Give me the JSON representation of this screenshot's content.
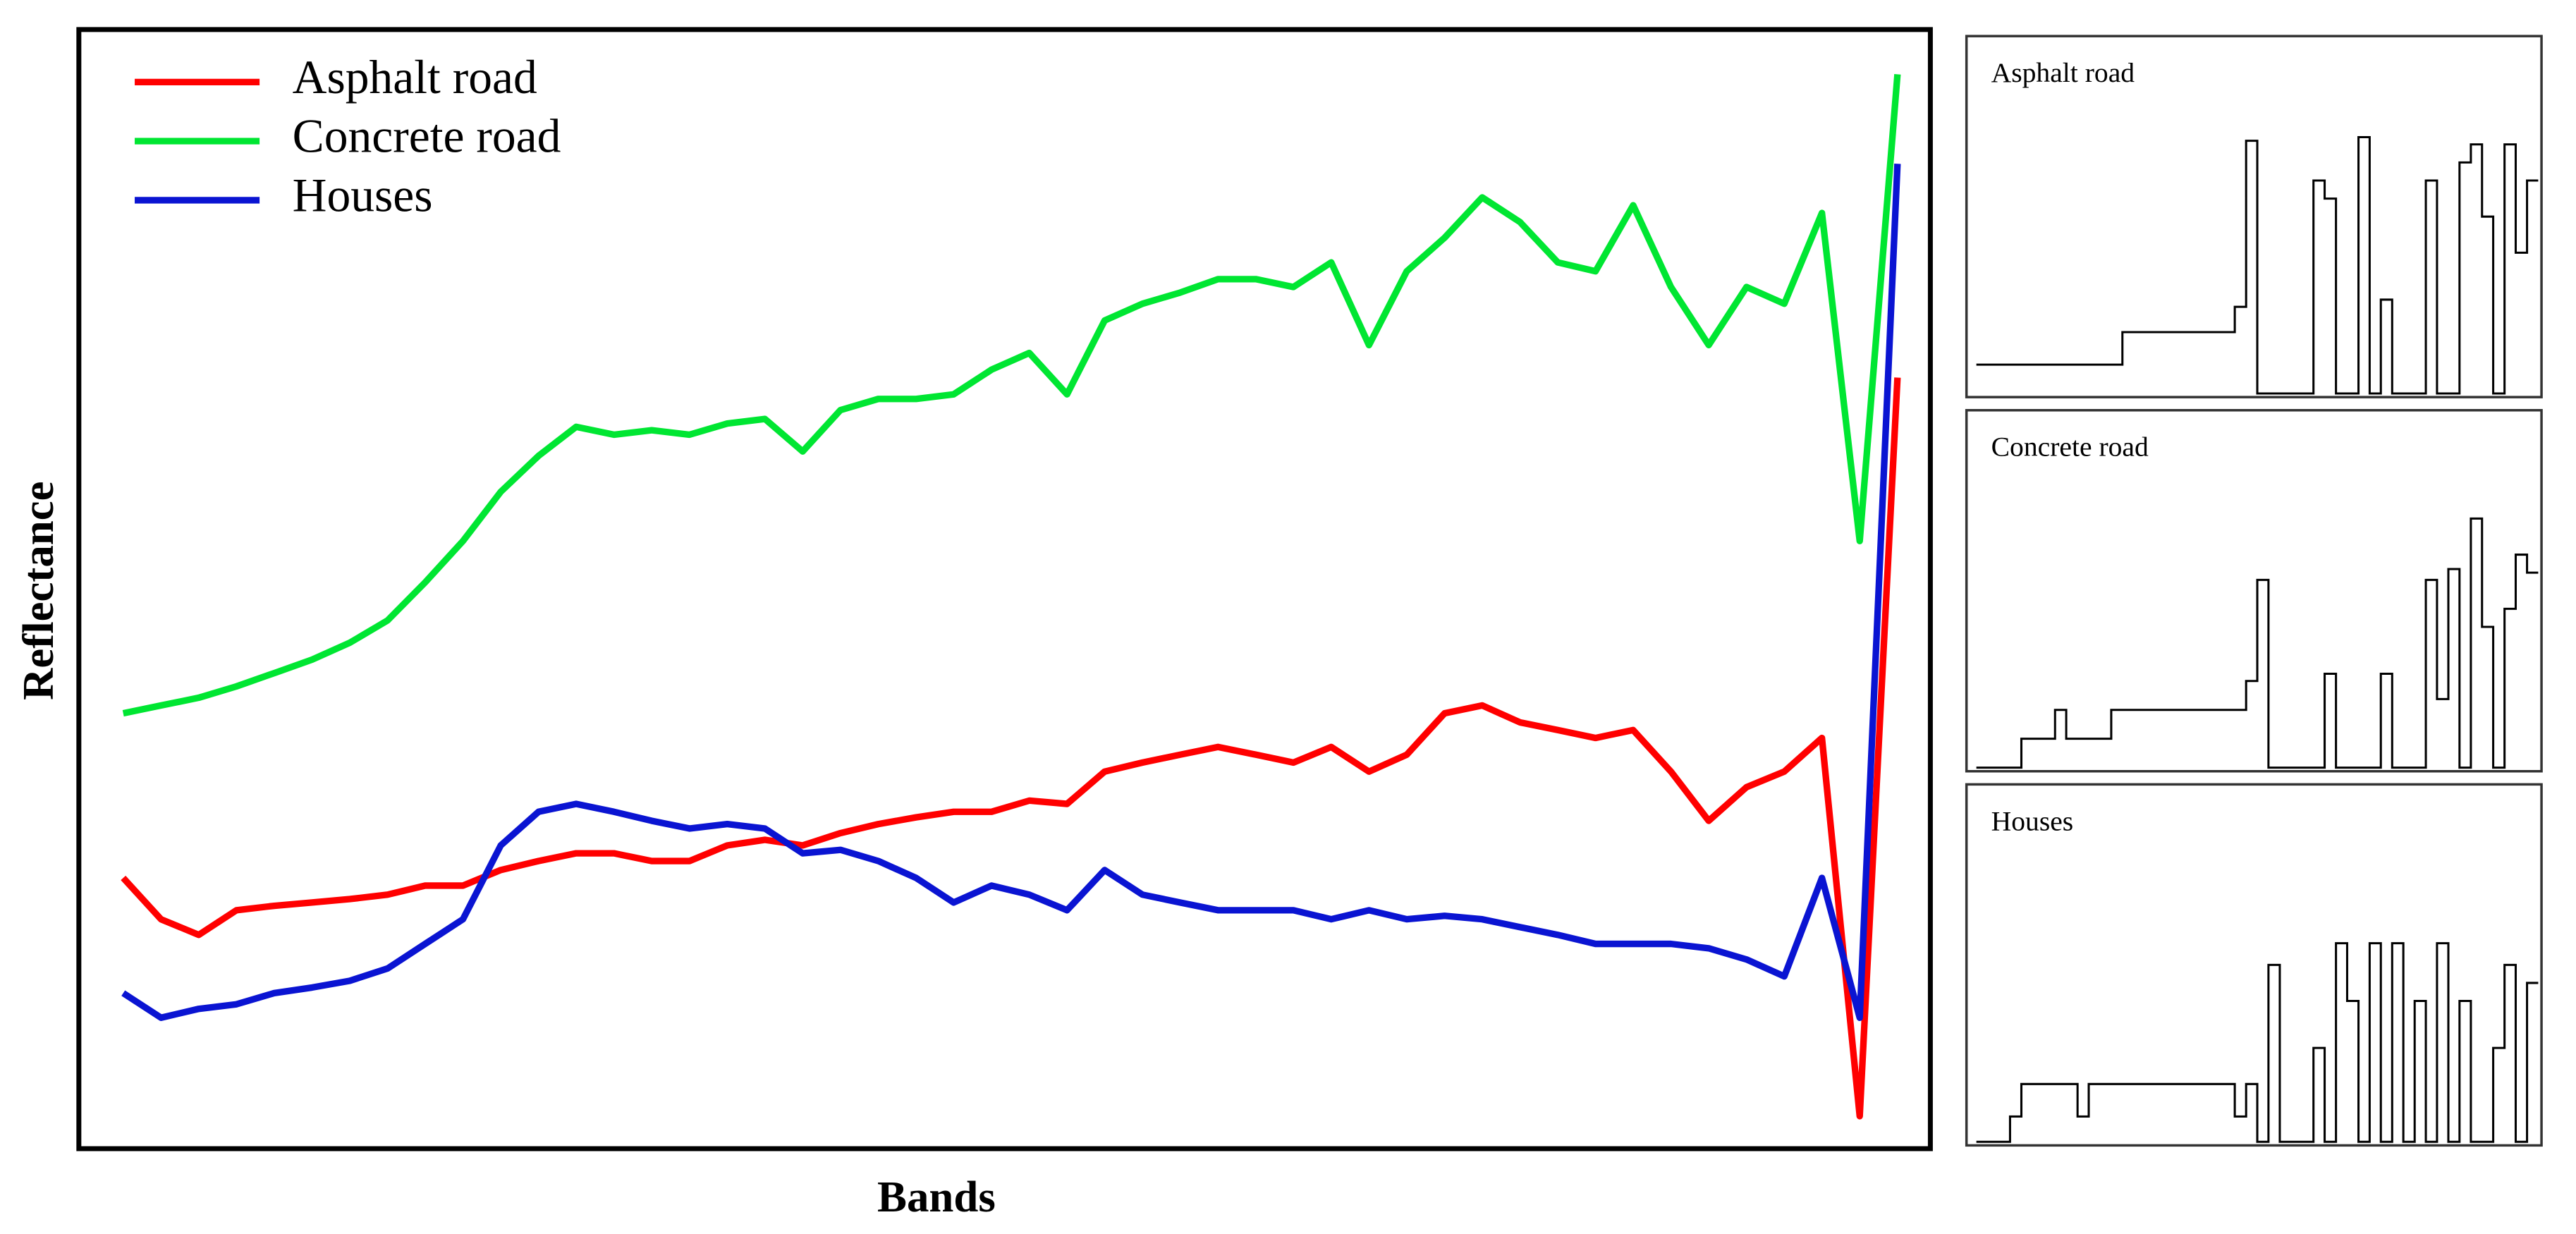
{
  "chart_data": [
    {
      "type": "line",
      "xlabel": "Bands",
      "ylabel": "Reflectance",
      "ylim": [
        0,
        100
      ],
      "legend": "upper left",
      "series": [
        {
          "name": "Asphalt road",
          "color": "#ff0000",
          "values": [
            24.2,
            20.5,
            19.1,
            21.3,
            21.7,
            22.0,
            22.3,
            22.7,
            23.5,
            23.5,
            24.9,
            25.7,
            26.4,
            26.4,
            25.7,
            25.7,
            27.1,
            27.6,
            27.1,
            28.2,
            29.0,
            29.6,
            30.1,
            30.1,
            31.1,
            30.8,
            33.7,
            34.5,
            35.2,
            35.9,
            35.2,
            34.5,
            35.9,
            33.7,
            35.2,
            38.9,
            39.6,
            38.1,
            37.4,
            36.7,
            37.4,
            33.7,
            29.3,
            32.3,
            33.7,
            36.7,
            2.9,
            68.9
          ]
        },
        {
          "name": "Concrete road",
          "color": "#00e632",
          "values": [
            38.9,
            39.6,
            40.3,
            41.3,
            42.5,
            43.7,
            45.2,
            47.2,
            50.6,
            54.3,
            58.7,
            61.9,
            64.5,
            63.8,
            64.2,
            63.8,
            64.8,
            65.2,
            62.3,
            66.0,
            67.0,
            67.0,
            67.4,
            69.6,
            71.1,
            67.4,
            74.0,
            75.5,
            76.5,
            77.7,
            77.7,
            77.0,
            79.2,
            71.8,
            78.4,
            81.4,
            85.0,
            82.8,
            79.2,
            78.4,
            84.3,
            77.0,
            71.8,
            77.0,
            75.5,
            83.6,
            54.3,
            96.0
          ]
        },
        {
          "name": "Houses",
          "color": "#0a14d2",
          "values": [
            13.9,
            11.7,
            12.5,
            12.9,
            13.9,
            14.4,
            15.0,
            16.1,
            18.3,
            20.5,
            27.1,
            30.1,
            30.8,
            30.1,
            29.3,
            28.6,
            29.0,
            28.6,
            26.4,
            26.7,
            25.7,
            24.2,
            22.0,
            23.5,
            22.7,
            21.3,
            24.9,
            22.7,
            22.0,
            21.3,
            21.3,
            21.3,
            20.5,
            21.3,
            20.5,
            20.8,
            20.5,
            19.8,
            19.1,
            18.3,
            18.3,
            18.3,
            17.9,
            16.9,
            15.4,
            24.2,
            11.7,
            88.0
          ]
        }
      ]
    },
    {
      "type": "line",
      "drawstyle": "steps",
      "title": "Asphalt road",
      "color": "#000000",
      "ylim": [
        0,
        100
      ],
      "values": [
        9,
        9,
        9,
        9,
        9,
        9,
        9,
        9,
        9,
        9,
        9,
        9,
        9,
        18,
        18,
        18,
        18,
        18,
        18,
        18,
        18,
        18,
        18,
        25,
        71,
        1,
        1,
        1,
        1,
        1,
        60,
        55,
        1,
        1,
        72,
        1,
        27,
        1,
        1,
        1,
        60,
        1,
        1,
        65,
        70,
        50,
        1,
        70,
        40,
        60
      ]
    },
    {
      "type": "line",
      "drawstyle": "steps",
      "title": "Concrete road",
      "color": "#000000",
      "ylim": [
        0,
        100
      ],
      "values": [
        1,
        1,
        1,
        1,
        9,
        9,
        9,
        17,
        9,
        9,
        9,
        9,
        17,
        17,
        17,
        17,
        17,
        17,
        17,
        17,
        17,
        17,
        17,
        17,
        25,
        53,
        1,
        1,
        1,
        1,
        1,
        27,
        1,
        1,
        1,
        1,
        27,
        1,
        1,
        1,
        53,
        20,
        56,
        1,
        70,
        40,
        1,
        45,
        60,
        55
      ]
    },
    {
      "type": "line",
      "drawstyle": "steps",
      "title": "Houses",
      "color": "#000000",
      "ylim": [
        0,
        100
      ],
      "values": [
        1,
        1,
        1,
        8,
        17,
        17,
        17,
        17,
        17,
        8,
        17,
        17,
        17,
        17,
        17,
        17,
        17,
        17,
        17,
        17,
        17,
        17,
        17,
        8,
        17,
        1,
        50,
        1,
        1,
        1,
        27,
        1,
        56,
        40,
        1,
        56,
        1,
        56,
        1,
        40,
        1,
        56,
        1,
        40,
        1,
        1,
        27,
        50,
        1,
        45
      ]
    }
  ]
}
